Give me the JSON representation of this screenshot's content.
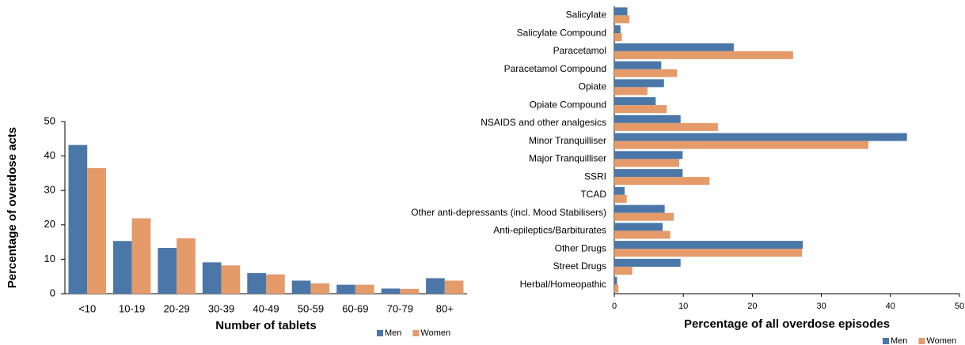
{
  "chart_data": [
    {
      "type": "bar",
      "orientation": "vertical",
      "x_label": "Number of tablets",
      "y_label": "Percentage of overdose acts",
      "categories": [
        "<10",
        "10-19",
        "20-29",
        "30-39",
        "40-49",
        "50-59",
        "60-69",
        "70-79",
        "80+"
      ],
      "series": [
        {
          "name": "Men",
          "color": "#4a77a8",
          "values": [
            43.2,
            15.3,
            13.3,
            9.1,
            6.0,
            3.8,
            2.6,
            1.5,
            4.5
          ]
        },
        {
          "name": "Women",
          "color": "#e59a6a",
          "values": [
            36.5,
            21.9,
            16.1,
            8.2,
            5.6,
            3.0,
            2.6,
            1.4,
            3.8
          ]
        }
      ],
      "ylim": [
        0,
        50
      ],
      "yticks": [
        0,
        10,
        20,
        30,
        40,
        50
      ],
      "grid": false,
      "legend": "bottom-right"
    },
    {
      "type": "bar",
      "orientation": "horizontal",
      "x_label": "Percentage of all overdose episodes",
      "categories": [
        "Salicylate",
        "Salicylate Compound",
        "Paracetamol",
        "Paracetamol Compound",
        "Opiate",
        "Opiate Compound",
        "NSAIDS and other analgesics",
        "Minor Tranquilliser",
        "Major Tranquilliser",
        "SSRI",
        "TCAD",
        "Other anti-depressants (incl. Mood Stabilisers)",
        "Anti-epileptics/Barbiturates",
        "Other Drugs",
        "Street Drugs",
        "Herbal/Homeopathic"
      ],
      "series": [
        {
          "name": "Men",
          "color": "#4a77a8",
          "values": [
            1.9,
            0.9,
            17.3,
            6.8,
            7.2,
            6.0,
            9.6,
            42.4,
            9.9,
            9.9,
            1.5,
            7.3,
            7.0,
            27.3,
            9.6,
            0.4
          ]
        },
        {
          "name": "Women",
          "color": "#e59a6a",
          "values": [
            2.2,
            1.1,
            25.9,
            9.1,
            4.8,
            7.6,
            15.0,
            36.8,
            9.4,
            13.8,
            1.8,
            8.6,
            8.1,
            27.2,
            2.6,
            0.6
          ]
        }
      ],
      "xlim": [
        0,
        50
      ],
      "xticks": [
        0,
        10,
        20,
        30,
        40,
        50
      ],
      "grid": false,
      "legend": "bottom-right"
    }
  ]
}
